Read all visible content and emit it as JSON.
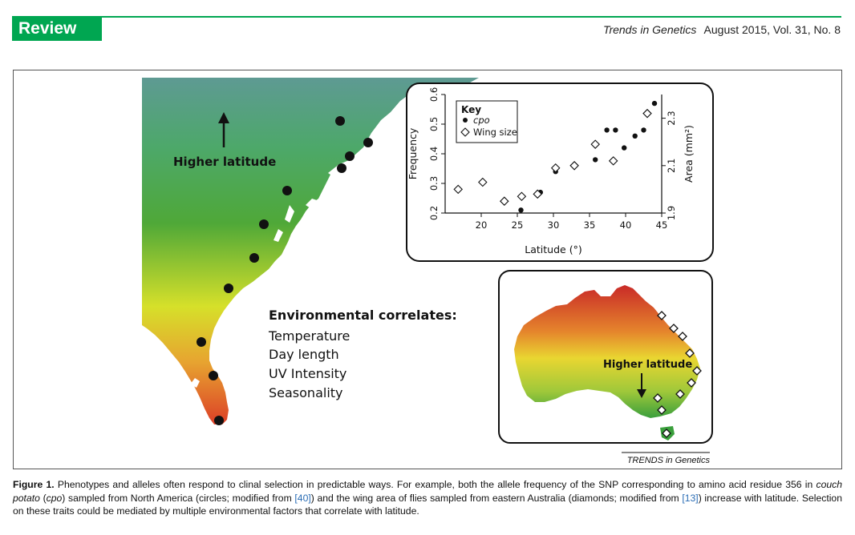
{
  "header": {
    "badge": "Review",
    "journal": "Trends in Genetics",
    "issue": "August 2015, Vol. 31, No. 8",
    "brand_color": "#00a651"
  },
  "figure": {
    "map_na": {
      "higher_latitude_label": "Higher latitude",
      "correlates_title": "Environmental correlates:",
      "correlates": [
        "Temperature",
        "Day length",
        "UV Intensity",
        "Seasonality"
      ]
    },
    "map_au": {
      "higher_latitude_label": "Higher latitude"
    },
    "credit": "TRENDS in Genetics"
  },
  "chart_data": {
    "type": "scatter",
    "title": "",
    "xlabel": "Latitude (°)",
    "ylabel": "Frequency",
    "y2label": "Area (mm²)",
    "xlim": [
      15,
      45
    ],
    "ylim": [
      0.2,
      0.6
    ],
    "y2lim": [
      1.9,
      2.4
    ],
    "x_ticks": [
      "20",
      "25",
      "30",
      "35",
      "40",
      "45"
    ],
    "y_ticks": [
      "0.2",
      "0.3",
      "0.4",
      "0.5",
      "0.6"
    ],
    "y2_ticks": [
      "1.9",
      "2.1",
      "2.3"
    ],
    "legend": {
      "title": "Key",
      "position": "top-left",
      "entries": [
        {
          "label": "cpo",
          "marker": "circle",
          "italic": true
        },
        {
          "label": "Wing size",
          "marker": "diamond",
          "italic": false
        }
      ]
    },
    "series": [
      {
        "name": "cpo",
        "marker": "circle",
        "axis": "left",
        "points": [
          [
            25.5,
            0.21
          ],
          [
            28.2,
            0.27
          ],
          [
            30.3,
            0.34
          ],
          [
            32.9,
            0.36
          ],
          [
            35.8,
            0.38
          ],
          [
            37.4,
            0.48
          ],
          [
            38.6,
            0.48
          ],
          [
            39.8,
            0.42
          ],
          [
            41.3,
            0.46
          ],
          [
            42.5,
            0.48
          ],
          [
            44.0,
            0.57
          ]
        ]
      },
      {
        "name": "Wing size",
        "marker": "diamond",
        "axis": "right",
        "points": [
          [
            16.8,
            2.0
          ],
          [
            20.2,
            2.03
          ],
          [
            23.2,
            1.95
          ],
          [
            25.6,
            1.97
          ],
          [
            27.8,
            1.98
          ],
          [
            30.3,
            2.09
          ],
          [
            32.9,
            2.1
          ],
          [
            35.8,
            2.19
          ],
          [
            38.3,
            2.12
          ],
          [
            43.0,
            2.32
          ]
        ]
      }
    ]
  },
  "caption": {
    "label": "Figure 1.",
    "part1": "Phenotypes and alleles often respond to clinal selection in predictable ways. For example, both the allele frequency of the SNP corresponding to amino acid residue 356 in",
    "gene_name": "couch potato",
    "part2": "(",
    "gene_abbr": "cpo",
    "part3": ") sampled from North America (circles; modified from",
    "ref1": "[40]",
    "part4": ") and the wing area of flies sampled from eastern Australia (diamonds; modified from",
    "ref2": "[13]",
    "part5": ") increase with latitude. Selection on these traits could be mediated by multiple environmental factors that correlate with latitude."
  }
}
